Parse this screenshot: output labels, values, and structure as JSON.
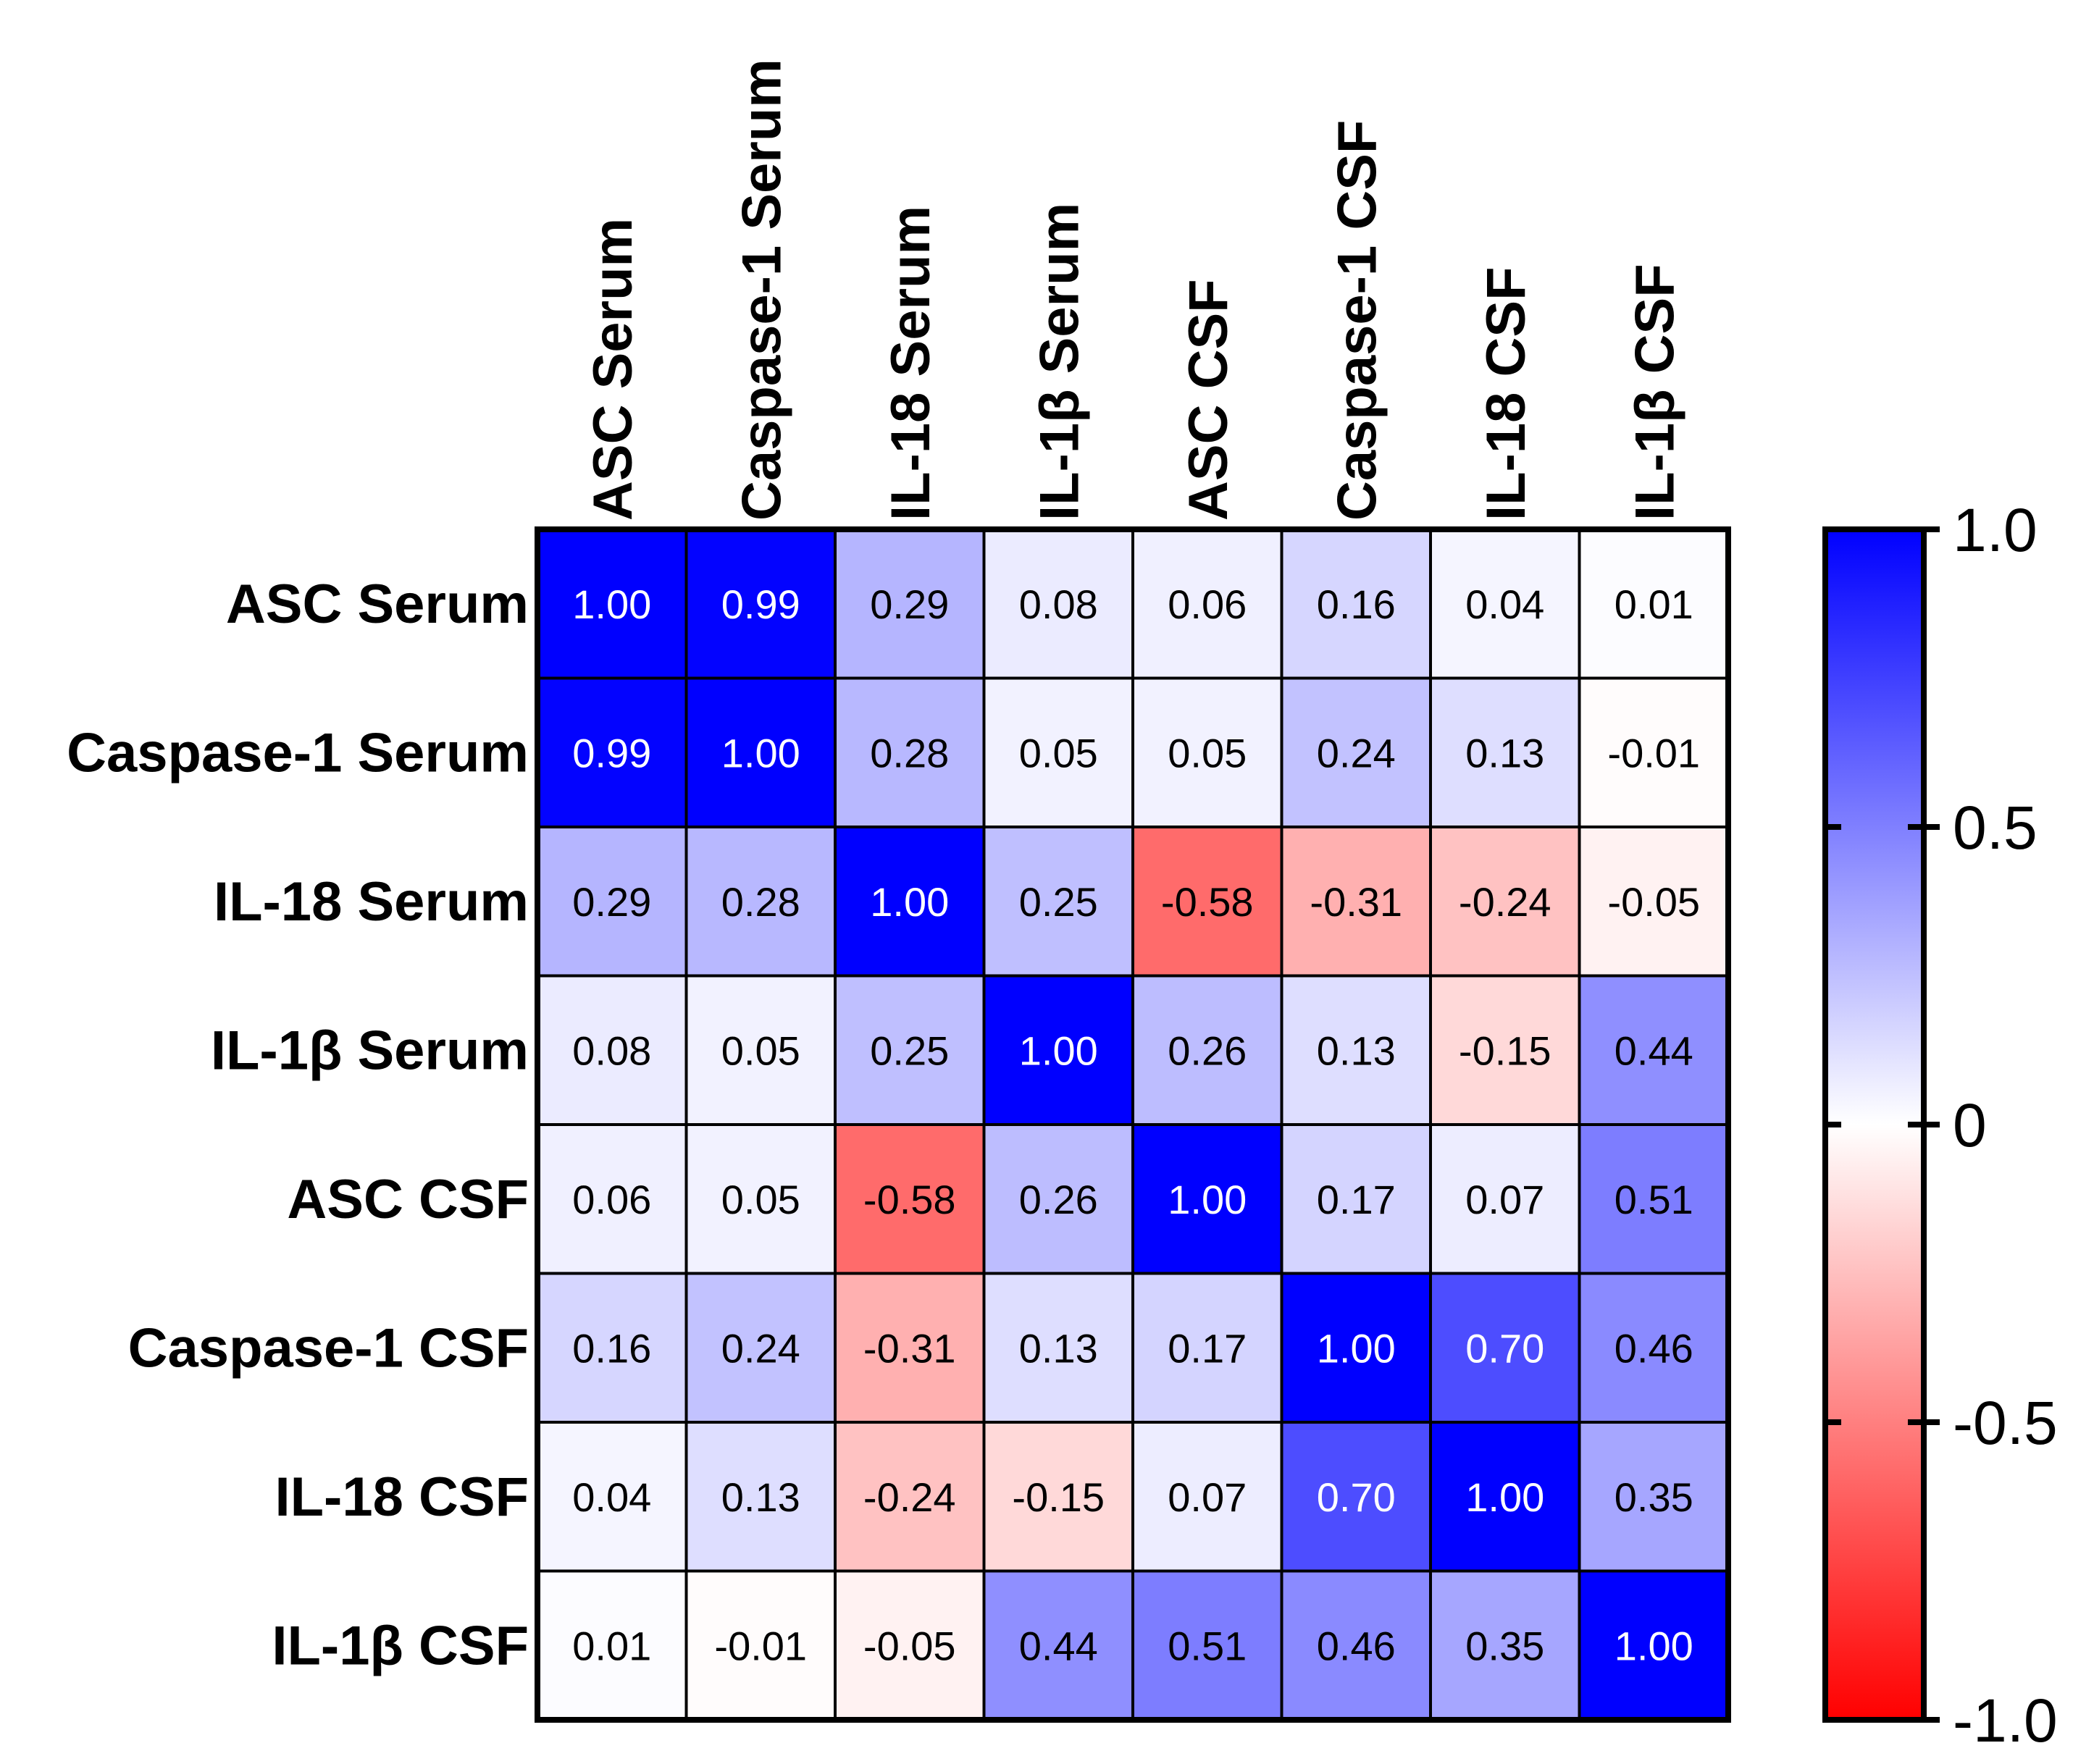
{
  "chart_data": {
    "type": "heatmap",
    "title": "",
    "rows": [
      "ASC Serum",
      "Caspase-1 Serum",
      "IL-18 Serum",
      "IL-1β Serum",
      "ASC CSF",
      "Caspase-1 CSF",
      "IL-18 CSF",
      "IL-1β CSF"
    ],
    "columns": [
      "ASC Serum",
      "Caspase-1 Serum",
      "IL-18 Serum",
      "IL-1β Serum",
      "ASC CSF",
      "Caspase-1 CSF",
      "IL-18 CSF",
      "IL-1β CSF"
    ],
    "values": [
      [
        1.0,
        0.99,
        0.29,
        0.08,
        0.06,
        0.16,
        0.04,
        0.01
      ],
      [
        0.99,
        1.0,
        0.28,
        0.05,
        0.05,
        0.24,
        0.13,
        -0.01
      ],
      [
        0.29,
        0.28,
        1.0,
        0.25,
        -0.58,
        -0.31,
        -0.24,
        -0.05
      ],
      [
        0.08,
        0.05,
        0.25,
        1.0,
        0.26,
        0.13,
        -0.15,
        0.44
      ],
      [
        0.06,
        0.05,
        -0.58,
        0.26,
        1.0,
        0.17,
        0.07,
        0.51
      ],
      [
        0.16,
        0.24,
        -0.31,
        0.13,
        0.17,
        1.0,
        0.7,
        0.46
      ],
      [
        0.04,
        0.13,
        -0.24,
        -0.15,
        0.07,
        0.7,
        1.0,
        0.35
      ],
      [
        0.01,
        -0.01,
        -0.05,
        0.44,
        0.51,
        0.46,
        0.35,
        1.0
      ]
    ],
    "value_labels": [
      [
        "1.00",
        "0.99",
        "0.29",
        "0.08",
        "0.06",
        "0.16",
        "0.04",
        "0.01"
      ],
      [
        "0.99",
        "1.00",
        "0.28",
        "0.05",
        "0.05",
        "0.24",
        "0.13",
        "-0.01"
      ],
      [
        "0.29",
        "0.28",
        "1.00",
        "0.25",
        "-0.58",
        "-0.31",
        "-0.24",
        "-0.05"
      ],
      [
        "0.08",
        "0.05",
        "0.25",
        "1.00",
        "0.26",
        "0.13",
        "-0.15",
        "0.44"
      ],
      [
        "0.06",
        "0.05",
        "-0.58",
        "0.26",
        "1.00",
        "0.17",
        "0.07",
        "0.51"
      ],
      [
        "0.16",
        "0.24",
        "-0.31",
        "0.13",
        "0.17",
        "1.00",
        "0.70",
        "0.46"
      ],
      [
        "0.04",
        "0.13",
        "-0.24",
        "-0.15",
        "0.07",
        "0.70",
        "1.00",
        "0.35"
      ],
      [
        "0.01",
        "-0.01",
        "-0.05",
        "0.44",
        "0.51",
        "0.46",
        "0.35",
        "1.00"
      ]
    ],
    "colorbar": {
      "range": [
        -1.0,
        1.0
      ],
      "ticks": [
        1.0,
        0.5,
        0,
        -0.5,
        -1.0
      ],
      "tick_labels": [
        "1.0",
        "0.5",
        "0",
        "-0.5",
        "-1.0"
      ],
      "colors": {
        "low": "#ff0000",
        "mid": "#ffffff",
        "high": "#0000ff"
      }
    }
  }
}
